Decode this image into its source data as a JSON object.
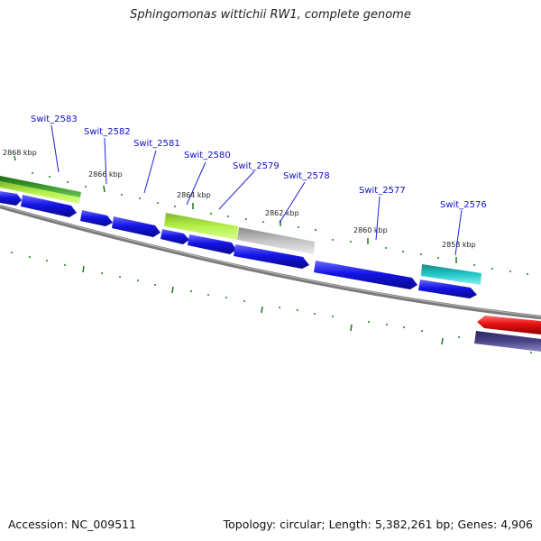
{
  "title": "Sphingomonas wittichii RW1, complete genome",
  "footer": {
    "accession": "Accession: NC_009511",
    "summary": "Topology: circular; Length: 5,382,261 bp; Genes: 4,906"
  },
  "colors": {
    "forward_cds": "#1414e6",
    "lime_feature": "#a6e83a",
    "dark_green_feature": "#2d8a20",
    "grey_feature": "#b8b8b8",
    "cyan_feature": "#22c4c4",
    "red_feature": "#e81010",
    "purple_feature": "#45407a",
    "tick": "#1a7a1a",
    "backbone": "#808080"
  },
  "kbp_labels": [
    "2868 kbp",
    "2866 kbp",
    "2864 kbp",
    "2862 kbp",
    "2860 kbp",
    "2858 kbp"
  ],
  "gene_labels": [
    "Swit_2583",
    "Swit_2582",
    "Swit_2581",
    "Swit_2580",
    "Swit_2579",
    "Swit_2578",
    "Swit_2577",
    "Swit_2576"
  ]
}
